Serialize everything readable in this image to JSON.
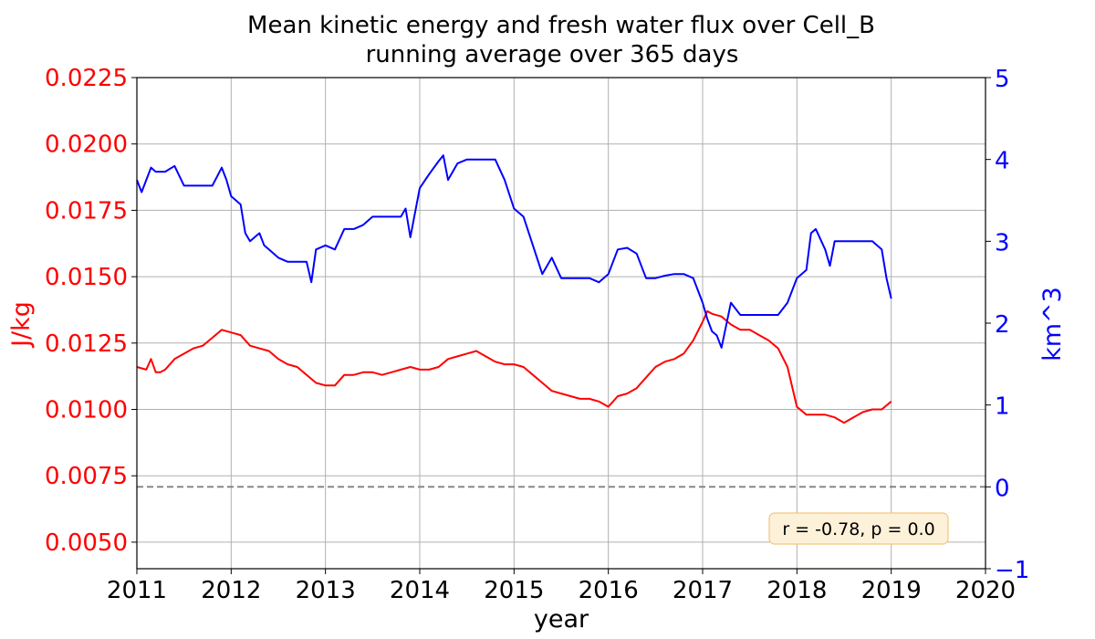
{
  "chart_data": {
    "type": "line",
    "title": "Mean kinetic energy and fresh water flux over Cell_B",
    "subtitle": "running average over 365 days",
    "xlabel": "year",
    "xlim": [
      2011,
      2020
    ],
    "x_ticks": [
      "2011",
      "2012",
      "2013",
      "2014",
      "2015",
      "2016",
      "2017",
      "2018",
      "2019",
      "2020"
    ],
    "grid": true,
    "y_left": {
      "label": "J/kg",
      "color": "#ff0000",
      "lim": [
        0.004,
        0.0225
      ],
      "ticks": [
        "0.0050",
        "0.0075",
        "0.0100",
        "0.0125",
        "0.0150",
        "0.0175",
        "0.0200",
        "0.0225"
      ]
    },
    "y_right": {
      "label": "km^3",
      "color": "#0000ff",
      "lim": [
        -1,
        5
      ],
      "ticks": [
        "−1",
        "0",
        "1",
        "2",
        "3",
        "4",
        "5"
      ]
    },
    "reference_line": {
      "axis": "right",
      "y": 0,
      "style": "dashed",
      "color": "#808080"
    },
    "annotation": "r = -0.78, p = 0.0",
    "series": [
      {
        "axis": "left",
        "color": "#ff0000",
        "x": [
          2011.0,
          2011.1,
          2011.15,
          2011.2,
          2011.25,
          2011.3,
          2011.4,
          2011.5,
          2011.6,
          2011.7,
          2011.8,
          2011.9,
          2012.0,
          2012.1,
          2012.2,
          2012.3,
          2012.4,
          2012.5,
          2012.6,
          2012.7,
          2012.8,
          2012.9,
          2013.0,
          2013.1,
          2013.2,
          2013.3,
          2013.4,
          2013.5,
          2013.6,
          2013.7,
          2013.8,
          2013.9,
          2014.0,
          2014.1,
          2014.2,
          2014.3,
          2014.4,
          2014.5,
          2014.6,
          2014.7,
          2014.8,
          2014.9,
          2015.0,
          2015.1,
          2015.2,
          2015.3,
          2015.4,
          2015.5,
          2015.6,
          2015.7,
          2015.8,
          2015.9,
          2016.0,
          2016.1,
          2016.2,
          2016.3,
          2016.4,
          2016.5,
          2016.6,
          2016.7,
          2016.8,
          2016.9,
          2017.0,
          2017.05,
          2017.1,
          2017.2,
          2017.3,
          2017.4,
          2017.5,
          2017.6,
          2017.7,
          2017.8,
          2017.9,
          2018.0,
          2018.1,
          2018.2,
          2018.3,
          2018.4,
          2018.5,
          2018.6,
          2018.7,
          2018.8,
          2018.9,
          2019.0
        ],
        "y": [
          0.0116,
          0.0115,
          0.0119,
          0.0114,
          0.0114,
          0.0115,
          0.0119,
          0.0121,
          0.0123,
          0.0124,
          0.0127,
          0.013,
          0.0129,
          0.0128,
          0.0124,
          0.0123,
          0.0122,
          0.0119,
          0.0117,
          0.0116,
          0.0113,
          0.011,
          0.0109,
          0.0109,
          0.0113,
          0.0113,
          0.0114,
          0.0114,
          0.0113,
          0.0114,
          0.0115,
          0.0116,
          0.0115,
          0.0115,
          0.0116,
          0.0119,
          0.012,
          0.0121,
          0.0122,
          0.012,
          0.0118,
          0.0117,
          0.0117,
          0.0116,
          0.0113,
          0.011,
          0.0107,
          0.0106,
          0.0105,
          0.0104,
          0.0104,
          0.0103,
          0.0101,
          0.0105,
          0.0106,
          0.0108,
          0.0112,
          0.0116,
          0.0118,
          0.0119,
          0.0121,
          0.0126,
          0.0133,
          0.0137,
          0.0136,
          0.0135,
          0.0132,
          0.013,
          0.013,
          0.0128,
          0.0126,
          0.0123,
          0.0116,
          0.0101,
          0.0098,
          0.0098,
          0.0098,
          0.0097,
          0.0095,
          0.0097,
          0.0099,
          0.01,
          0.01,
          0.0103
        ]
      },
      {
        "axis": "right",
        "color": "#0000ff",
        "x": [
          2011.0,
          2011.05,
          2011.1,
          2011.15,
          2011.2,
          2011.3,
          2011.4,
          2011.5,
          2011.6,
          2011.7,
          2011.8,
          2011.9,
          2011.95,
          2012.0,
          2012.1,
          2012.15,
          2012.2,
          2012.3,
          2012.35,
          2012.4,
          2012.5,
          2012.6,
          2012.7,
          2012.8,
          2012.85,
          2012.9,
          2013.0,
          2013.1,
          2013.2,
          2013.3,
          2013.4,
          2013.5,
          2013.6,
          2013.7,
          2013.8,
          2013.85,
          2013.9,
          2014.0,
          2014.1,
          2014.2,
          2014.25,
          2014.3,
          2014.4,
          2014.5,
          2014.6,
          2014.7,
          2014.8,
          2014.9,
          2015.0,
          2015.1,
          2015.2,
          2015.3,
          2015.4,
          2015.5,
          2015.6,
          2015.7,
          2015.8,
          2015.9,
          2016.0,
          2016.1,
          2016.2,
          2016.3,
          2016.4,
          2016.5,
          2016.6,
          2016.7,
          2016.8,
          2016.9,
          2017.0,
          2017.05,
          2017.1,
          2017.15,
          2017.2,
          2017.3,
          2017.4,
          2017.5,
          2017.6,
          2017.7,
          2017.8,
          2017.9,
          2018.0,
          2018.1,
          2018.15,
          2018.2,
          2018.3,
          2018.35,
          2018.4,
          2018.5,
          2018.6,
          2018.7,
          2018.8,
          2018.9,
          2018.95,
          2019.0
        ],
        "y": [
          3.75,
          3.6,
          3.75,
          3.9,
          3.85,
          3.85,
          3.92,
          3.68,
          3.68,
          3.68,
          3.68,
          3.9,
          3.75,
          3.55,
          3.45,
          3.1,
          3.0,
          3.1,
          2.95,
          2.9,
          2.8,
          2.75,
          2.75,
          2.75,
          2.5,
          2.9,
          2.95,
          2.9,
          3.15,
          3.15,
          3.2,
          3.3,
          3.3,
          3.3,
          3.3,
          3.4,
          3.05,
          3.65,
          3.82,
          3.98,
          4.05,
          3.75,
          3.95,
          4.0,
          4.0,
          4.0,
          4.0,
          3.75,
          3.4,
          3.3,
          2.95,
          2.6,
          2.8,
          2.55,
          2.55,
          2.55,
          2.55,
          2.5,
          2.6,
          2.9,
          2.92,
          2.85,
          2.55,
          2.55,
          2.58,
          2.6,
          2.6,
          2.55,
          2.25,
          2.05,
          1.9,
          1.85,
          1.7,
          2.25,
          2.1,
          2.1,
          2.1,
          2.1,
          2.1,
          2.25,
          2.55,
          2.65,
          3.1,
          3.15,
          2.9,
          2.7,
          3.0,
          3.0,
          3.0,
          3.0,
          3.0,
          2.9,
          2.55,
          2.3
        ]
      }
    ]
  }
}
